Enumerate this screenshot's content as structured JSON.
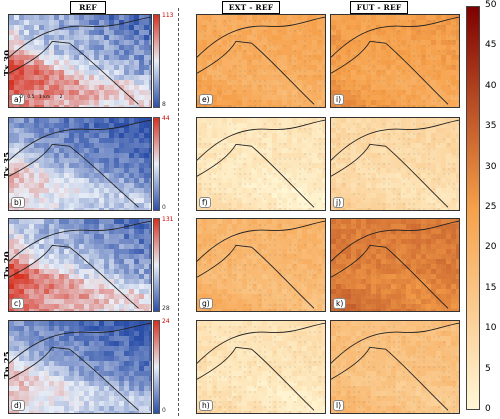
{
  "column_titles": [
    "REF",
    "EXT - REF",
    "FUT - REF"
  ],
  "row_labels": [
    "Tx 30",
    "Tx 35",
    "Tn 20",
    "Tn 25"
  ],
  "ref_colorbars": [
    {
      "max": "113",
      "min": "8"
    },
    {
      "max": "44",
      "min": "0"
    },
    {
      "max": "131",
      "min": "28"
    },
    {
      "max": "24",
      "min": "0"
    }
  ],
  "panel_letters": [
    [
      "a)",
      "e)",
      "i)"
    ],
    [
      "b)",
      "f)",
      "j)"
    ],
    [
      "c)",
      "g)",
      "k)"
    ],
    [
      "d)",
      "h)",
      "l)"
    ]
  ],
  "scale_bar": {
    "ticks": [
      "0",
      "0.5",
      "1 km",
      "2"
    ]
  },
  "chart_data": {
    "type": "heatmap",
    "title": "",
    "columns": [
      "REF",
      "EXT - REF",
      "FUT - REF"
    ],
    "rows": [
      "Tx 30",
      "Tx 35",
      "Tn 20",
      "Tn 25"
    ],
    "ref_ranges": [
      [
        8,
        113
      ],
      [
        0,
        44
      ],
      [
        28,
        131
      ],
      [
        0,
        24
      ]
    ],
    "diff_colorbar": {
      "range": [
        0,
        50
      ],
      "ticks": [
        0,
        5,
        10,
        15,
        20,
        25,
        30,
        35,
        40,
        45,
        50
      ]
    },
    "colors": {
      "ref_low": "#2b4fa8",
      "ref_mid": "#e8eef7",
      "ref_high": "#d7301f",
      "diff_low": "#fff7d6",
      "diff_mid": "#f6a04a",
      "diff_high": "#7f0000"
    }
  }
}
